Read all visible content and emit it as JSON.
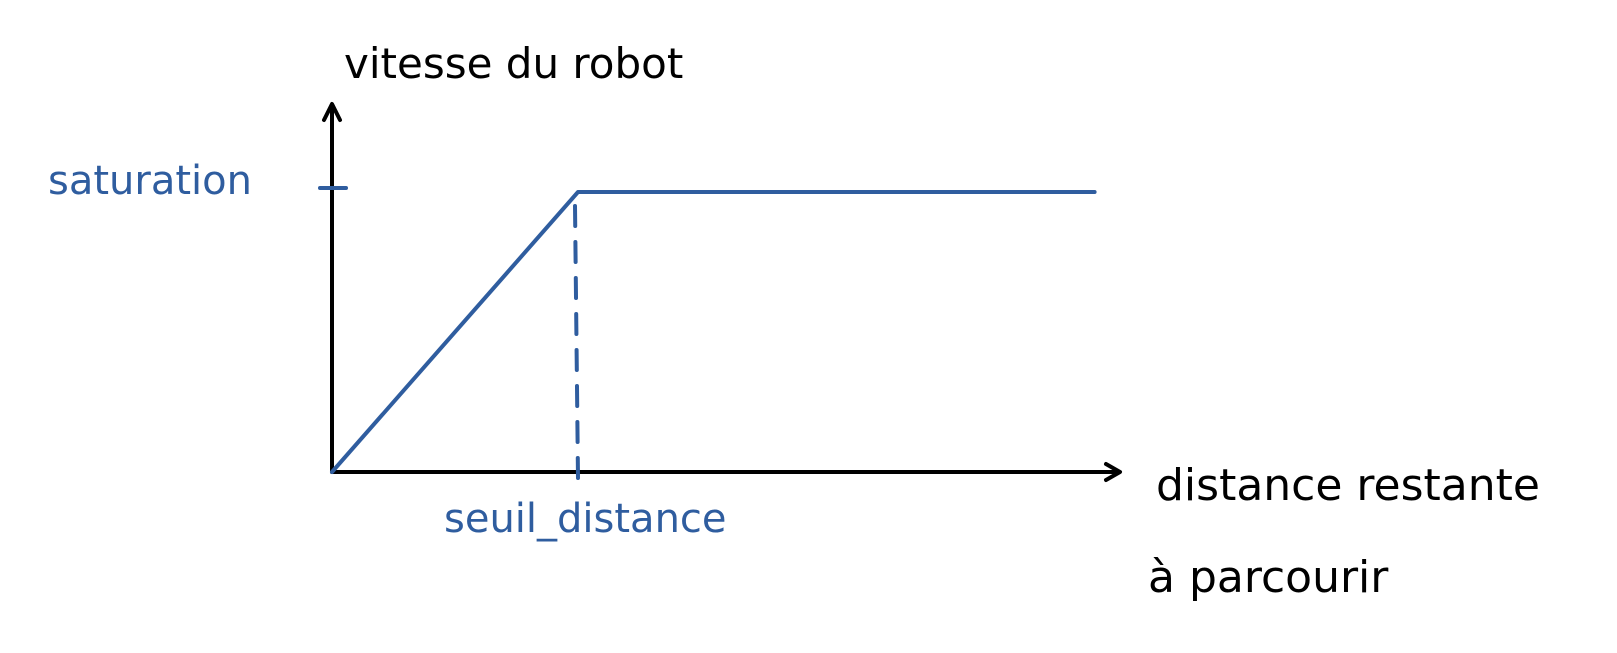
{
  "colors": {
    "axis": "#000000",
    "curve": "#2f5d9f",
    "annotation": "#2f5d9f",
    "background": "#ffffff"
  },
  "labels": {
    "y_axis": "vitesse du robot",
    "x_axis_line1": "distance restante",
    "x_axis_line2": "à parcourir",
    "saturation": "saturation",
    "threshold": "seuil_distance"
  },
  "chart_data": {
    "type": "line",
    "series": [
      {
        "points": [
          [
            0,
            0
          ],
          [
            1,
            1
          ],
          [
            3.1,
            1
          ]
        ]
      }
    ],
    "annotations": {
      "saturation_level": 1,
      "threshold_distance": 1
    }
  }
}
